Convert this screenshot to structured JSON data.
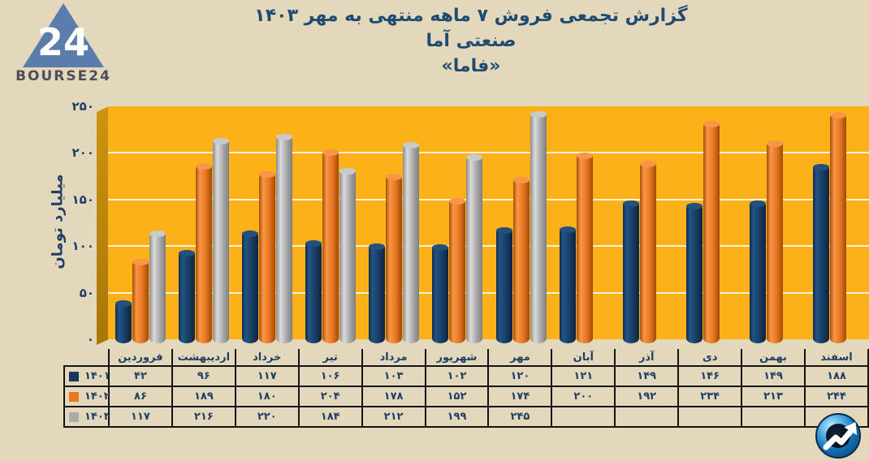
{
  "colors": {
    "page_background": "#E3D8BB",
    "title_text": "#1F4B73",
    "plot_background": "#FBB117",
    "wall": "#B9830C",
    "gridline": "#FFFFFF",
    "axis_text": "#1F4066",
    "table_border": "#141414",
    "series_1401": "#17375E",
    "series_1402": "#E87722",
    "series_1403": "#ABABAB",
    "logo_triangle": "#5B7DAE",
    "logo_text": "#4E4E5A"
  },
  "logo": {
    "brand": "BOURSE24",
    "mark": "24"
  },
  "title": {
    "line1": "گزارش تجمعی فروش ۷ ماهه منتهی به مهر ۱۴۰۳",
    "line2": "صنعتی آما",
    "line3": "«فاما»"
  },
  "chart_data": {
    "type": "bar",
    "title": "گزارش تجمعی فروش ۷ ماهه منتهی به مهر ۱۴۰۳ صنعتی آما «فاما»",
    "xlabel": "",
    "ylabel": "میلیارد تومان",
    "ylim": [
      0,
      250
    ],
    "yticks": [
      0,
      50,
      100,
      150,
      200,
      250
    ],
    "grid": true,
    "legend_position": "table-left",
    "categories": [
      "فروردین",
      "اردیبهشت",
      "خرداد",
      "تیر",
      "مرداد",
      "شهریور",
      "مهر",
      "آبان",
      "آذر",
      "دی",
      "بهمن",
      "اسفند"
    ],
    "series": [
      {
        "name": "۱۴۰۱",
        "color": "#17375E",
        "values": [
          42,
          96,
          117,
          106,
          103,
          102,
          120,
          121,
          149,
          146,
          149,
          188
        ]
      },
      {
        "name": "۱۴۰۲",
        "color": "#E87722",
        "values": [
          86,
          189,
          180,
          204,
          178,
          152,
          174,
          200,
          192,
          234,
          213,
          244
        ]
      },
      {
        "name": "۱۴۰۳",
        "color": "#ABABAB",
        "values": [
          117,
          216,
          220,
          184,
          212,
          199,
          245,
          null,
          null,
          null,
          null,
          null
        ]
      }
    ]
  },
  "watermark": {
    "icon": "trend-circle-icon"
  }
}
